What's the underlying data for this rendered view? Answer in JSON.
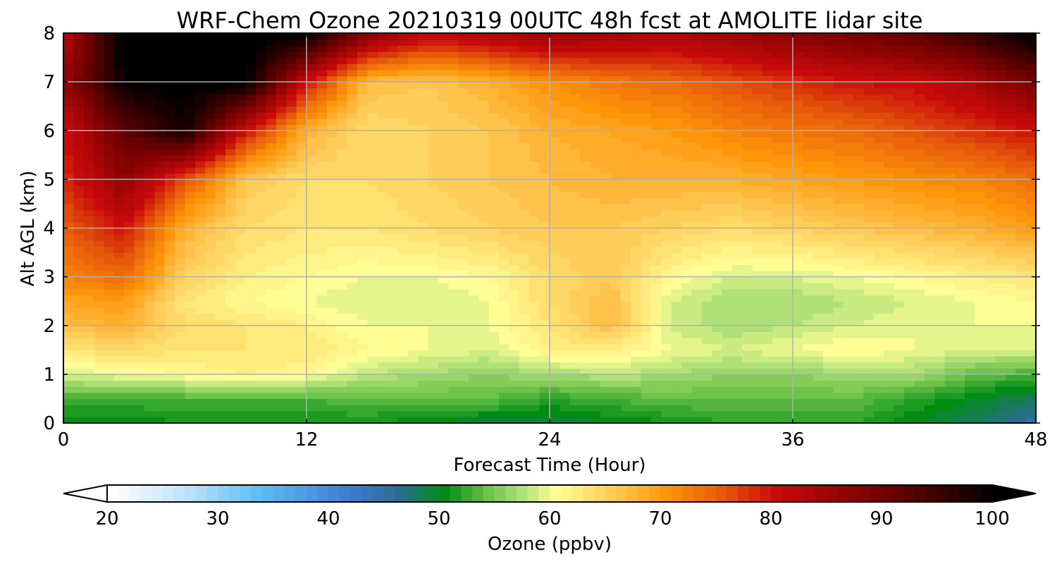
{
  "chart_data": {
    "type": "heatmap",
    "title": "WRF-Chem Ozone  20210319 00UTC 48h fcst at AMOLITE lidar site",
    "xlabel": "Forecast Time (Hour)",
    "ylabel": "Alt AGL (km)",
    "xlim": [
      0,
      48
    ],
    "ylim": [
      0,
      8
    ],
    "xticks": [
      0,
      12,
      24,
      36,
      48
    ],
    "yticks": [
      0,
      1,
      2,
      3,
      4,
      5,
      6,
      7,
      8
    ],
    "grid": true,
    "x": [
      0,
      3,
      6,
      9,
      12,
      15,
      18,
      21,
      24,
      27,
      30,
      33,
      36,
      39,
      42,
      45,
      48
    ],
    "y": [
      0,
      0.5,
      1,
      1.5,
      2,
      2.5,
      3,
      4,
      5,
      6,
      7,
      8
    ],
    "z": [
      [
        50,
        50,
        51,
        51,
        51,
        51,
        50,
        49,
        49,
        50,
        51,
        52,
        52,
        52,
        50,
        48,
        45
      ],
      [
        53,
        53,
        53,
        53,
        53,
        54,
        54,
        54,
        52,
        53,
        54,
        54,
        54,
        54,
        52,
        50,
        48
      ],
      [
        59,
        60,
        61,
        62,
        61,
        58,
        57,
        56,
        57,
        58,
        57,
        56,
        56,
        57,
        57,
        54,
        53
      ],
      [
        63,
        64,
        63,
        63,
        63,
        61,
        60,
        59,
        62,
        62,
        60,
        59,
        60,
        61,
        60,
        59,
        59
      ],
      [
        67,
        68,
        64,
        63,
        62,
        60,
        60,
        60,
        63,
        67,
        59,
        57,
        58,
        59,
        60,
        60,
        60
      ],
      [
        69,
        70,
        63,
        61,
        60,
        59,
        59,
        60,
        64,
        67,
        59,
        57,
        57,
        58,
        59,
        60,
        61
      ],
      [
        72,
        74,
        65,
        62,
        61,
        60,
        60,
        61,
        64,
        66,
        61,
        59,
        59,
        60,
        61,
        62,
        63
      ],
      [
        75,
        80,
        68,
        64,
        63,
        63,
        64,
        65,
        66,
        66,
        65,
        64,
        65,
        66,
        67,
        68,
        70
      ],
      [
        78,
        87,
        76,
        66,
        64,
        64,
        65,
        66,
        67,
        68,
        68,
        68,
        69,
        70,
        71,
        72,
        74
      ],
      [
        80,
        92,
        99,
        80,
        68,
        64,
        65,
        66,
        68,
        69,
        70,
        72,
        73,
        74,
        76,
        78,
        80
      ],
      [
        86,
        100,
        101,
        101,
        80,
        67,
        66,
        68,
        71,
        73,
        74,
        76,
        78,
        80,
        81,
        84,
        90
      ],
      [
        82,
        101,
        101,
        101,
        101,
        88,
        82,
        84,
        86,
        85,
        84,
        86,
        88,
        90,
        92,
        96,
        101
      ]
    ],
    "colorbar": {
      "label": "Ozone  (ppbv)",
      "min": 20,
      "max": 100,
      "ticks": [
        20,
        30,
        40,
        50,
        60,
        70,
        80,
        90,
        100
      ],
      "extend": "both",
      "placement": "bottom"
    }
  }
}
